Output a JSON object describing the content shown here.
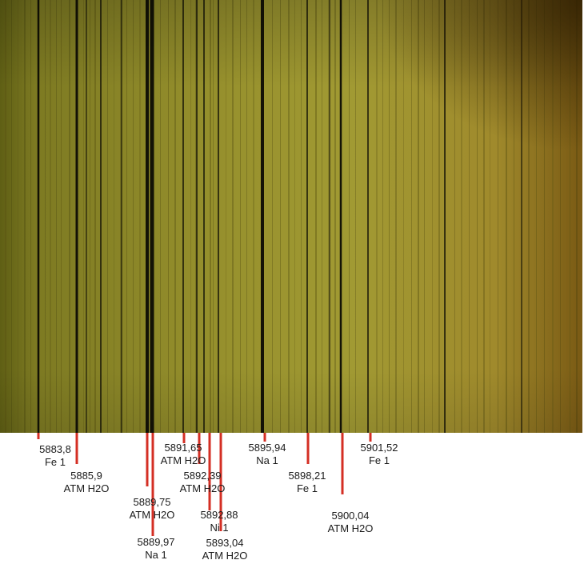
{
  "colors": {
    "spectrum_left": "#73701c",
    "spectrum_mid": "#a59e32",
    "spectrum_right": "#8a6d1c",
    "absorption_line": "#0d0c04",
    "marker": "#d42f24",
    "text": "#1a1a1a"
  },
  "lines": [
    {
      "wavelength": "5883,8",
      "element": "Fe 1"
    },
    {
      "wavelength": "5885,9",
      "element": "ATM H2O"
    },
    {
      "wavelength": "5889,75",
      "element": "ATM H2O"
    },
    {
      "wavelength": "5889,97",
      "element": "Na 1"
    },
    {
      "wavelength": "5891,65",
      "element": "ATM H2O"
    },
    {
      "wavelength": "5892,39",
      "element": "ATM H2O"
    },
    {
      "wavelength": "5892,88",
      "element": "Ni 1"
    },
    {
      "wavelength": "5893,04",
      "element": "ATM H2O"
    },
    {
      "wavelength": "5895,94",
      "element": "Na 1"
    },
    {
      "wavelength": "5898,21",
      "element": "Fe 1"
    },
    {
      "wavelength": "5900,04",
      "element": "ATM H2O"
    },
    {
      "wavelength": "5901,52",
      "element": "Fe 1"
    }
  ]
}
